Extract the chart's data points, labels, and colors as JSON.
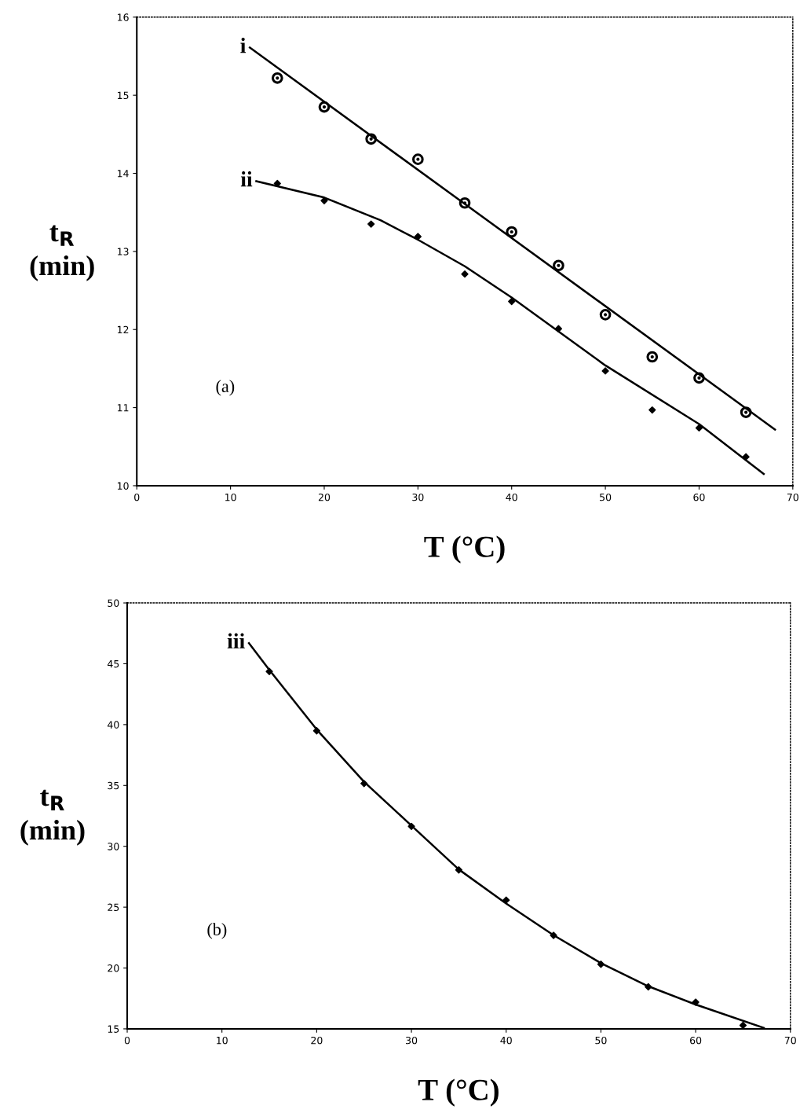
{
  "chart_data": [
    {
      "type": "scatter",
      "xlabel": "T (°C)",
      "ylabel": "t$_{R}$\n(min)",
      "annotations": [
        "(a)"
      ],
      "xlim": [
        0,
        70
      ],
      "xticks": [
        0,
        10,
        20,
        30,
        40,
        50,
        60,
        70
      ],
      "ylim": [
        10,
        16
      ],
      "yticks": [
        10,
        11,
        12,
        13,
        14,
        15,
        16
      ],
      "grid": false,
      "legend": false,
      "series": [
        {
          "type": "line",
          "name": "i",
          "color": "#000000",
          "marker": "none",
          "x": [
            12.06,
            68.1
          ],
          "values": [
            15.61,
            10.72
          ]
        },
        {
          "color": "#000000",
          "marker": "circle",
          "x": [
            15,
            20,
            25,
            30,
            35,
            40,
            45,
            50,
            55,
            60,
            65
          ],
          "values": [
            15.22,
            14.85,
            14.44,
            14.18,
            13.62,
            13.25,
            12.82,
            12.19,
            11.65,
            11.38,
            10.94
          ]
        },
        {
          "type": "line",
          "name": "ii",
          "color": "#000000",
          "marker": "none",
          "x": [
            12.75,
            20,
            26,
            30,
            35,
            40,
            50,
            60,
            66.9
          ],
          "values": [
            13.9,
            13.69,
            13.4,
            13.15,
            12.81,
            12.41,
            11.54,
            10.79,
            10.15
          ]
        },
        {
          "color": "#000000",
          "marker": "diamond",
          "x": [
            15,
            20,
            25,
            30,
            35,
            40,
            45,
            50,
            55,
            60,
            65
          ],
          "values": [
            13.87,
            13.65,
            13.35,
            13.19,
            12.71,
            12.36,
            12.01,
            11.47,
            10.97,
            10.74,
            10.37
          ]
        }
      ]
    },
    {
      "type": "scatter",
      "xlabel": "T (°C)",
      "ylabel": "t$_{R}$\n(min)",
      "annotations": [
        "(b)"
      ],
      "xlim": [
        0,
        70
      ],
      "xticks": [
        0,
        10,
        20,
        30,
        40,
        50,
        60,
        70
      ],
      "ylim": [
        15,
        50
      ],
      "yticks": [
        15,
        20,
        25,
        30,
        35,
        40,
        45,
        50
      ],
      "grid": false,
      "legend": false,
      "series": [
        {
          "type": "line",
          "name": "iii",
          "color": "#000000",
          "marker": "none",
          "x": [
            12.85,
            15,
            20,
            25,
            30,
            35,
            40,
            45,
            50,
            55,
            60,
            67.2
          ],
          "values": [
            46.7,
            44.5,
            39.6,
            35.3,
            31.7,
            28.1,
            25.3,
            22.7,
            20.4,
            18.5,
            17.0,
            15.08
          ]
        },
        {
          "color": "#000000",
          "marker": "diamond",
          "x": [
            15,
            20,
            25,
            30,
            35,
            40,
            45,
            50,
            55,
            60,
            65
          ],
          "values": [
            44.37,
            39.49,
            35.16,
            31.64,
            28.06,
            25.58,
            22.68,
            20.31,
            18.45,
            17.19,
            15.29
          ]
        }
      ]
    }
  ]
}
